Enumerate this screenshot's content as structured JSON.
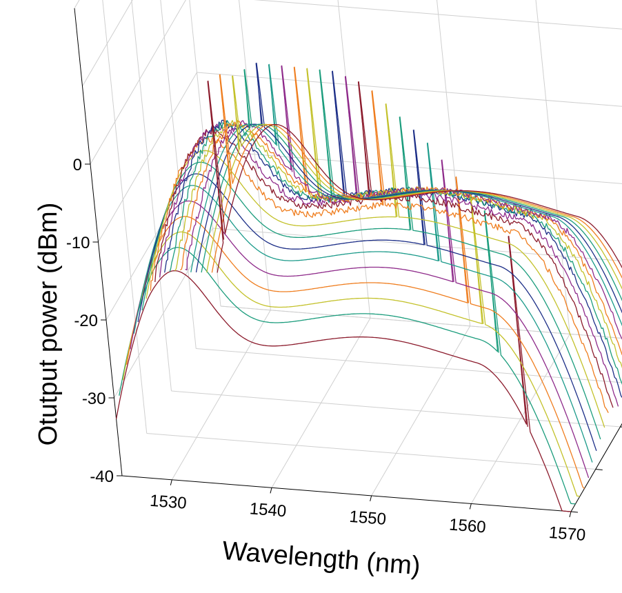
{
  "chart_data": {
    "type": "line",
    "subtype": "3d-waterfall",
    "title": "",
    "xlabel": "Wavelength (nm)",
    "ylabel": "Otutput power (dBm)",
    "xlim": [
      1525,
      1570
    ],
    "zlim": [
      -40,
      0
    ],
    "x_ticks": [
      "1530",
      "1540",
      "1550",
      "1560",
      "1570"
    ],
    "z_ticks": [
      "0",
      "-10",
      "-20",
      "-30",
      "-40"
    ],
    "grid": true,
    "legend": "none",
    "series": [
      {
        "color": "#8b1a2b",
        "signal_nm": 1526.0,
        "signal_dbm": -11,
        "floor_dbm": -26
      },
      {
        "color": "#ef7d1e",
        "signal_nm": 1527.8,
        "signal_dbm": -9,
        "floor_dbm": -25
      },
      {
        "color": "#c3c12a",
        "signal_nm": 1529.6,
        "signal_dbm": -8,
        "floor_dbm": -24
      },
      {
        "color": "#1a9c7c",
        "signal_nm": 1531.4,
        "signal_dbm": -6,
        "floor_dbm": -23
      },
      {
        "color": "#1c2e87",
        "signal_nm": 1533.2,
        "signal_dbm": -4,
        "floor_dbm": -22
      },
      {
        "color": "#1b9a8a",
        "signal_nm": 1535.0,
        "signal_dbm": -3,
        "floor_dbm": -21
      },
      {
        "color": "#8e2a8a",
        "signal_nm": 1536.8,
        "signal_dbm": -2,
        "floor_dbm": -20
      },
      {
        "color": "#ef7d1e",
        "signal_nm": 1538.6,
        "signal_dbm": -1,
        "floor_dbm": -19
      },
      {
        "color": "#c3c12a",
        "signal_nm": 1540.4,
        "signal_dbm": 0,
        "floor_dbm": -18
      },
      {
        "color": "#1a9c7c",
        "signal_nm": 1542.2,
        "signal_dbm": 1,
        "floor_dbm": -17
      },
      {
        "color": "#1c2e87",
        "signal_nm": 1544.0,
        "signal_dbm": 2,
        "floor_dbm": -16
      },
      {
        "color": "#8e2a8a",
        "signal_nm": 1545.8,
        "signal_dbm": 2.5,
        "floor_dbm": -15.5
      },
      {
        "color": "#8b1a2b",
        "signal_nm": 1547.6,
        "signal_dbm": 3,
        "floor_dbm": -15
      },
      {
        "color": "#ef7d1e",
        "signal_nm": 1549.4,
        "signal_dbm": 3,
        "floor_dbm": -15
      },
      {
        "color": "#c3c12a",
        "signal_nm": 1551.2,
        "signal_dbm": 2.5,
        "floor_dbm": -15.5
      },
      {
        "color": "#1a9c7c",
        "signal_nm": 1553.0,
        "signal_dbm": 2,
        "floor_dbm": -16
      },
      {
        "color": "#1c2e87",
        "signal_nm": 1554.8,
        "signal_dbm": 1.5,
        "floor_dbm": -16.5
      },
      {
        "color": "#1b9a8a",
        "signal_nm": 1556.6,
        "signal_dbm": 1,
        "floor_dbm": -17
      },
      {
        "color": "#8e2a8a",
        "signal_nm": 1558.4,
        "signal_dbm": 0,
        "floor_dbm": -18
      },
      {
        "color": "#ef7d1e",
        "signal_nm": 1560.2,
        "signal_dbm": -1,
        "floor_dbm": -19
      },
      {
        "color": "#c3c12a",
        "signal_nm": 1562.0,
        "signal_dbm": -2,
        "floor_dbm": -20
      },
      {
        "color": "#1a9c7c",
        "signal_nm": 1563.8,
        "signal_dbm": -3,
        "floor_dbm": -21
      },
      {
        "color": "#8b1a2b",
        "signal_nm": 1566.5,
        "signal_dbm": -5,
        "floor_dbm": -23
      }
    ]
  }
}
